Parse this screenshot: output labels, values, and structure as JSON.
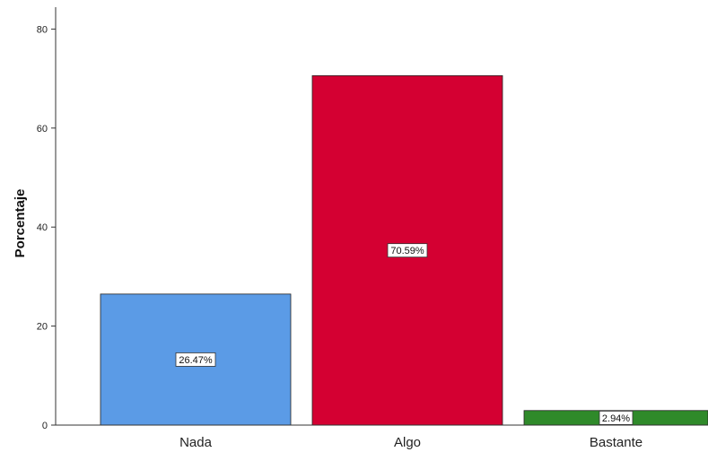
{
  "chart_data": {
    "type": "bar",
    "categories": [
      "Nada",
      "Algo",
      "Bastante"
    ],
    "values": [
      26.47,
      70.59,
      2.94
    ],
    "data_labels": [
      "26.47%",
      "70.59%",
      "2.94%"
    ],
    "colors": [
      "#5b9be6",
      "#d40032",
      "#2f8a2a"
    ],
    "xlabel": "",
    "ylabel": "Porcentaje",
    "ylim": [
      0,
      80
    ],
    "yticks": [
      0,
      20,
      40,
      60,
      80
    ],
    "grid": false,
    "legend": "none"
  }
}
